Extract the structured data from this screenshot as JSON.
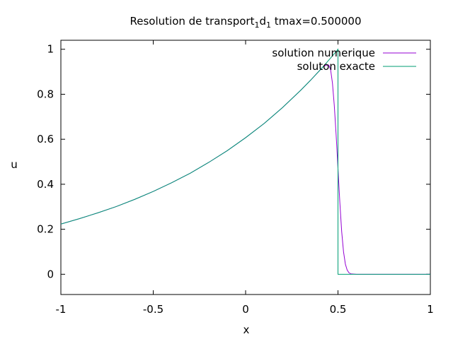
{
  "chart_data": {
    "type": "line",
    "title": "Resolution de transport",
    "title_sub1": "1",
    "title_mid": "d",
    "title_sub2": "1",
    "title_tail": " tmax=0.500000",
    "xlabel": "x",
    "ylabel": "u",
    "xlim": [
      -1,
      1
    ],
    "ylim": [
      -0.09,
      1.04
    ],
    "xticks": [
      -1,
      -0.5,
      0,
      0.5,
      1
    ],
    "xtick_labels": [
      "-1",
      "-0.5",
      "0",
      "0.5",
      "1"
    ],
    "yticks": [
      0,
      0.2,
      0.4,
      0.6,
      0.8,
      1
    ],
    "ytick_labels": [
      "0",
      "0.2",
      "0.4",
      "0.6",
      "0.8",
      "1"
    ],
    "grid": false,
    "legend_position": "top-right",
    "series": [
      {
        "name": "solution numerique",
        "color": "#9400d3",
        "x": [
          -1,
          -0.9,
          -0.8,
          -0.7,
          -0.6,
          -0.5,
          -0.4,
          -0.3,
          -0.2,
          -0.1,
          0,
          0.1,
          0.2,
          0.3,
          0.35,
          0.4,
          0.42,
          0.44,
          0.45,
          0.46,
          0.47,
          0.48,
          0.49,
          0.5,
          0.51,
          0.52,
          0.53,
          0.54,
          0.55,
          0.56,
          0.57,
          0.6,
          0.7,
          0.8,
          0.9,
          1
        ],
        "y": [
          0.223,
          0.247,
          0.273,
          0.301,
          0.333,
          0.368,
          0.407,
          0.449,
          0.497,
          0.549,
          0.607,
          0.67,
          0.741,
          0.819,
          0.861,
          0.905,
          0.923,
          0.93,
          0.93,
          0.91,
          0.85,
          0.75,
          0.62,
          0.47,
          0.32,
          0.19,
          0.1,
          0.045,
          0.018,
          0.006,
          0.002,
          0,
          0,
          0,
          0,
          0
        ]
      },
      {
        "name": "soluton exacte",
        "color": "#009e73",
        "x": [
          -1,
          -0.9,
          -0.8,
          -0.7,
          -0.6,
          -0.5,
          -0.4,
          -0.3,
          -0.2,
          -0.1,
          0,
          0.1,
          0.2,
          0.3,
          0.35,
          0.4,
          0.42,
          0.44,
          0.46,
          0.48,
          0.5,
          0.5,
          0.6,
          0.7,
          0.8,
          0.9,
          1
        ],
        "y": [
          0.223,
          0.247,
          0.273,
          0.301,
          0.333,
          0.368,
          0.407,
          0.449,
          0.497,
          0.549,
          0.607,
          0.67,
          0.741,
          0.819,
          0.861,
          0.905,
          0.923,
          0.942,
          0.961,
          0.98,
          1.0,
          0,
          0,
          0,
          0,
          0,
          0
        ]
      }
    ]
  }
}
